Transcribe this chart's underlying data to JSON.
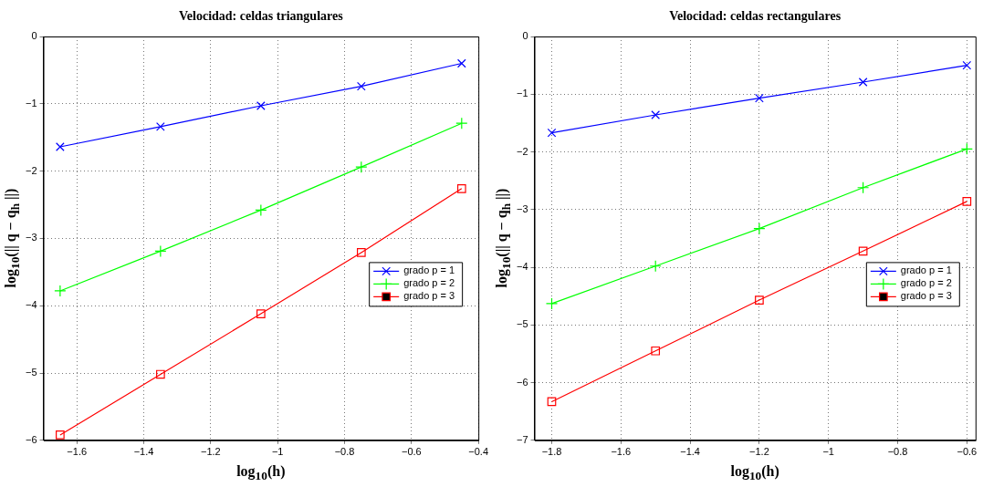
{
  "chart_data": [
    {
      "type": "line",
      "title": "Velocidad: celdas triangulares",
      "xlabel": "log$_{10}$(h)",
      "ylabel": "log$_{10}$(|| q − q$_{h}$ ||)",
      "x": [
        -1.65,
        -1.35,
        -1.05,
        -0.75,
        -0.45
      ],
      "xlim": [
        -1.7,
        -0.4
      ],
      "xticks": [
        -1.6,
        -1.4,
        -1.2,
        -1,
        -0.8,
        -0.6,
        -0.4
      ],
      "ylim": [
        -6,
        0
      ],
      "yticks": [
        -6,
        -5,
        -4,
        -3,
        -2,
        -1,
        0
      ],
      "grid": true,
      "legend": "right",
      "line_style": "solid",
      "series": [
        {
          "name": "grado p = 1",
          "color": "#0000ff",
          "marker": "cross",
          "values": [
            -1.64,
            -1.34,
            -1.03,
            -0.74,
            -0.4
          ]
        },
        {
          "name": "grado p = 2",
          "color": "#00ff00",
          "marker": "plus",
          "values": [
            -3.78,
            -3.19,
            -2.58,
            -1.94,
            -1.29
          ]
        },
        {
          "name": "grado p = 3",
          "color": "#ff0000",
          "marker": "square",
          "values": [
            -5.92,
            -5.02,
            -4.12,
            -3.21,
            -2.26
          ]
        }
      ]
    },
    {
      "type": "line",
      "title": "Velocidad: celdas rectangulares",
      "xlabel": "log$_{10}$(h)",
      "ylabel": "log$_{10}$(|| q − q$_{h}$ ||)",
      "x": [
        -1.8,
        -1.5,
        -1.2,
        -0.9,
        -0.6
      ],
      "xlim": [
        -1.85,
        -0.575
      ],
      "xticks": [
        -1.8,
        -1.6,
        -1.4,
        -1.2,
        -1,
        -0.8,
        -0.6
      ],
      "ylim": [
        -7,
        0
      ],
      "yticks": [
        -7,
        -6,
        -5,
        -4,
        -3,
        -2,
        -1,
        0
      ],
      "grid": true,
      "legend": "right",
      "line_style": "solid",
      "series": [
        {
          "name": "grado p = 1",
          "color": "#0000ff",
          "marker": "cross",
          "values": [
            -1.67,
            -1.36,
            -1.07,
            -0.79,
            -0.5
          ]
        },
        {
          "name": "grado p = 2",
          "color": "#00ff00",
          "marker": "plus",
          "values": [
            -4.63,
            -3.98,
            -3.33,
            -2.62,
            -1.95
          ]
        },
        {
          "name": "grado p = 3",
          "color": "#ff0000",
          "marker": "square",
          "values": [
            -6.33,
            -5.45,
            -4.57,
            -3.72,
            -2.86
          ]
        }
      ]
    }
  ]
}
